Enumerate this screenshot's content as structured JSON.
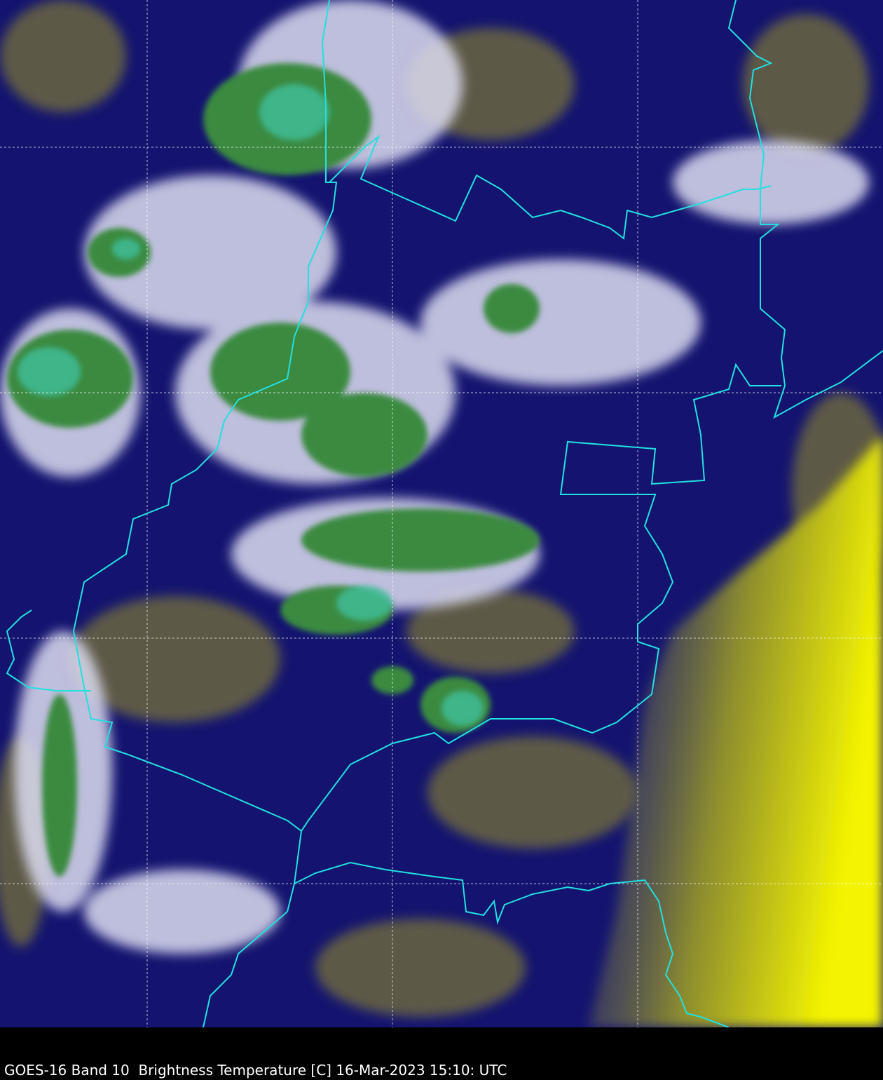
{
  "caption": "GOES-16 Band 10  Brightness Temperature [C] 16-Mar-2023 15:10: UTC",
  "colors": {
    "background": "#000000",
    "clear_warm": "#f2f200",
    "mid_olive": "#6e6a3a",
    "cold_navy": "#0a0a78",
    "cloud_white": "#e8e8f4",
    "cloud_top_green": "#3a8a3a",
    "coldest_teal": "#3cc09a",
    "borders": "#22e0e0",
    "gridlines": "#ffffff"
  },
  "map": {
    "product": "satellite infrared brightness temperature",
    "overlays": [
      "political-borders",
      "lat-lon-gridlines"
    ]
  }
}
